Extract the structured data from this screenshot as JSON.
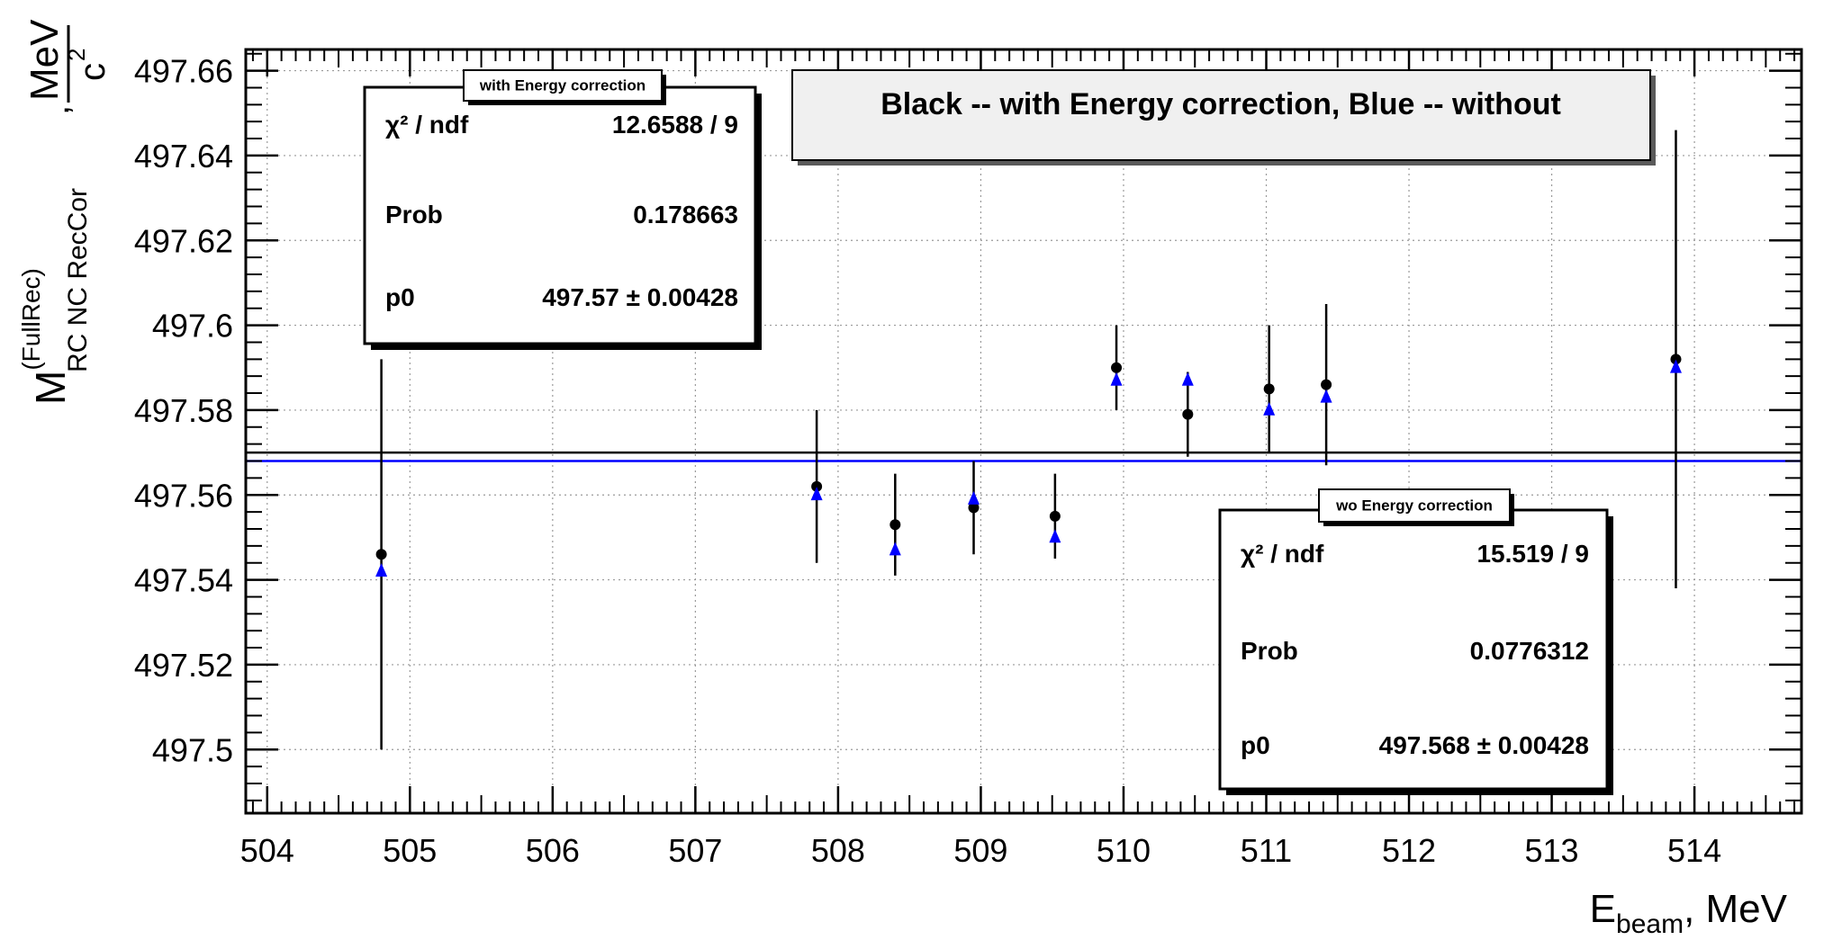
{
  "chart_data": {
    "type": "scatter",
    "title": "Black -- with Energy correction, Blue -- without",
    "xlabel": {
      "main": "E",
      "sub": "beam",
      "suffix": ", MeV"
    },
    "ylabel": {
      "main": "M",
      "sup": "(FullRec)",
      "sub": "RC NC RecCor",
      "comma": ",",
      "unit_num": "MeV",
      "unit_den": "c",
      "unit_den_sup": "2"
    },
    "xlim": [
      503.85,
      514.75
    ],
    "ylim": [
      497.485,
      497.665
    ],
    "x_ticks": [
      "504",
      "505",
      "506",
      "507",
      "508",
      "509",
      "510",
      "511",
      "512",
      "513",
      "514"
    ],
    "y_ticks": [
      "497.5",
      "497.52",
      "497.54",
      "497.56",
      "497.58",
      "497.6",
      "497.62",
      "497.64",
      "497.66"
    ],
    "grid": true,
    "series": [
      {
        "name": "with Energy correction",
        "color": "#000000",
        "marker": "circle",
        "x": [
          504.8,
          507.85,
          508.4,
          508.95,
          509.52,
          509.95,
          510.45,
          511.02,
          511.42,
          513.87
        ],
        "y": [
          497.546,
          497.562,
          497.553,
          497.557,
          497.555,
          497.59,
          497.579,
          497.585,
          497.586,
          497.592
        ],
        "yerr": [
          0.046,
          0.018,
          0.012,
          0.011,
          0.01,
          0.01,
          0.01,
          0.015,
          0.019,
          0.054
        ]
      },
      {
        "name": "wo Energy correction",
        "color": "#0000ff",
        "marker": "triangle",
        "x": [
          504.8,
          507.85,
          508.4,
          508.95,
          509.52,
          509.95,
          510.45,
          511.02,
          511.42,
          513.87
        ],
        "y": [
          497.542,
          497.56,
          497.547,
          497.559,
          497.55,
          497.587,
          497.587,
          497.58,
          497.583,
          497.59
        ]
      }
    ],
    "fit_lines": [
      {
        "name": "with Energy correction",
        "y": 497.57,
        "color": "#000000"
      },
      {
        "name": "wo Energy correction",
        "y": 497.568,
        "color": "#0000ff"
      }
    ]
  },
  "stat_box_with": {
    "title": "with Energy correction",
    "rows": [
      {
        "label": "χ² / ndf",
        "value": "12.6588 / 9"
      },
      {
        "label": "Prob",
        "value": "0.178663"
      },
      {
        "label": "p0",
        "value": "497.57 ± 0.00428"
      }
    ]
  },
  "stat_box_wo": {
    "title": "wo Energy correction",
    "rows": [
      {
        "label": "χ² / ndf",
        "value": "15.519 / 9"
      },
      {
        "label": "Prob",
        "value": "0.0776312"
      },
      {
        "label": "p0",
        "value": "497.568 ± 0.00428"
      }
    ]
  }
}
